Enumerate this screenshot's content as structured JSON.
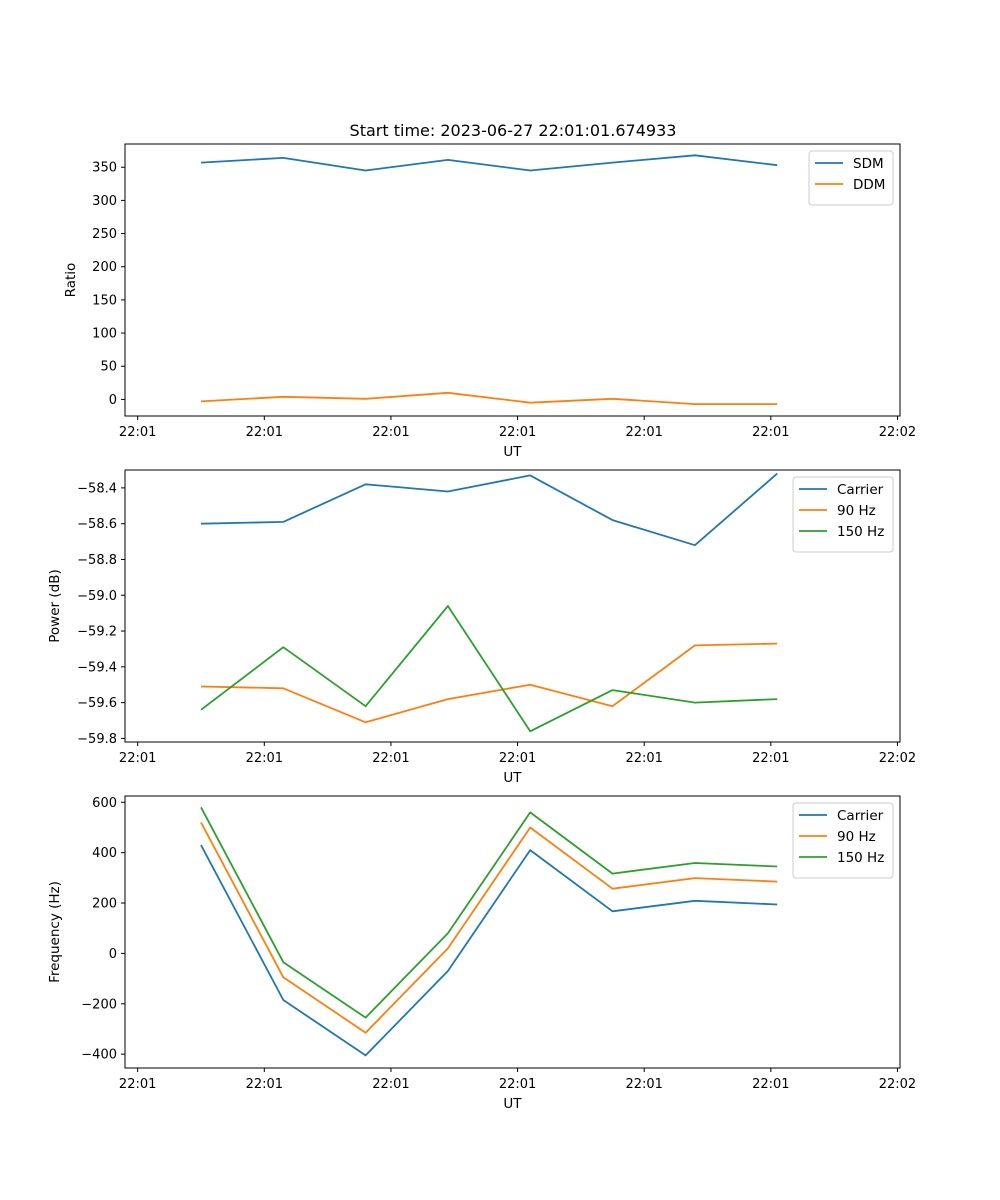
{
  "figure": {
    "title": "Start time: 2023-06-27 22:01:01.674933"
  },
  "chart_data": [
    {
      "type": "line",
      "title": "Start time: 2023-06-27 22:01:01.674933",
      "xlabel": "UT",
      "ylabel": "Ratio",
      "x_tick_labels": [
        "22:01",
        "22:01",
        "22:01",
        "22:01",
        "22:01",
        "22:01",
        "22:02"
      ],
      "x_ticks": [
        0,
        1,
        2,
        3,
        4,
        5,
        6
      ],
      "xlim": [
        -0.1,
        6.02
      ],
      "ylim": [
        -25,
        385
      ],
      "y_ticks": [
        0,
        50,
        100,
        150,
        200,
        250,
        300,
        350
      ],
      "legend": "top-right",
      "x": [
        0.5,
        1.15,
        1.8,
        2.45,
        3.1,
        3.75,
        4.4,
        5.05
      ],
      "series": [
        {
          "name": "SDM",
          "color": "#1f77b4",
          "values": [
            357,
            364,
            345,
            361,
            345,
            357,
            368,
            353
          ]
        },
        {
          "name": "DDM",
          "color": "#ff7f0e",
          "values": [
            -3,
            4,
            1,
            10,
            -5,
            1,
            -7,
            -7
          ]
        }
      ]
    },
    {
      "type": "line",
      "title": "",
      "xlabel": "UT",
      "ylabel": "Power (dB)",
      "x_tick_labels": [
        "22:01",
        "22:01",
        "22:01",
        "22:01",
        "22:01",
        "22:01",
        "22:02"
      ],
      "x_ticks": [
        0,
        1,
        2,
        3,
        4,
        5,
        6
      ],
      "xlim": [
        -0.1,
        6.02
      ],
      "ylim": [
        -59.82,
        -58.3
      ],
      "y_ticks": [
        -58.4,
        -58.6,
        -58.8,
        -59.0,
        -59.2,
        -59.4,
        -59.6,
        -59.8
      ],
      "y_tick_labels": [
        "−58.4",
        "−58.6",
        "−58.8",
        "−59.0",
        "−59.2",
        "−59.4",
        "−59.6",
        "−59.8"
      ],
      "legend": "top-right",
      "x": [
        0.5,
        1.15,
        1.8,
        2.45,
        3.1,
        3.75,
        4.4,
        5.05
      ],
      "series": [
        {
          "name": "Carrier",
          "color": "#1f77b4",
          "values": [
            -58.6,
            -58.59,
            -58.38,
            -58.42,
            -58.33,
            -58.58,
            -58.72,
            -58.32
          ]
        },
        {
          "name": "90 Hz",
          "color": "#ff7f0e",
          "values": [
            -59.51,
            -59.52,
            -59.71,
            -59.58,
            -59.5,
            -59.62,
            -59.28,
            -59.27
          ]
        },
        {
          "name": "150 Hz",
          "color": "#2ca02c",
          "values": [
            -59.64,
            -59.29,
            -59.62,
            -59.06,
            -59.76,
            -59.53,
            -59.6,
            -59.58
          ]
        }
      ]
    },
    {
      "type": "line",
      "title": "",
      "xlabel": "UT",
      "ylabel": "Frequency (Hz)",
      "x_tick_labels": [
        "22:01",
        "22:01",
        "22:01",
        "22:01",
        "22:01",
        "22:01",
        "22:02"
      ],
      "x_ticks": [
        0,
        1,
        2,
        3,
        4,
        5,
        6
      ],
      "xlim": [
        -0.1,
        6.02
      ],
      "ylim": [
        -455,
        625
      ],
      "y_ticks": [
        600,
        400,
        200,
        0,
        -200,
        -400
      ],
      "y_tick_labels": [
        "600",
        "400",
        "200",
        "0",
        "−200",
        "−400"
      ],
      "legend": "top-right",
      "x": [
        0.5,
        1.15,
        1.8,
        2.45,
        3.1,
        3.75,
        4.4,
        5.05
      ],
      "series": [
        {
          "name": "Carrier",
          "color": "#1f77b4",
          "values": [
            430,
            -185,
            -405,
            -70,
            410,
            167,
            209,
            194
          ]
        },
        {
          "name": "90 Hz",
          "color": "#ff7f0e",
          "values": [
            520,
            -95,
            -315,
            20,
            500,
            257,
            299,
            285
          ]
        },
        {
          "name": "150 Hz",
          "color": "#2ca02c",
          "values": [
            580,
            -35,
            -255,
            80,
            560,
            317,
            359,
            345
          ]
        }
      ]
    }
  ]
}
